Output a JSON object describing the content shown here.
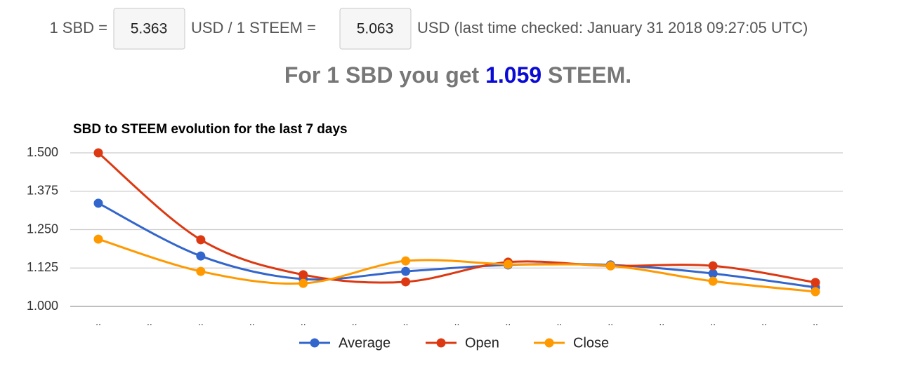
{
  "header": {
    "sbd_prefix": "1 SBD =",
    "sbd_price": "5.363",
    "steem_prefix": "USD / 1 STEEM =",
    "steem_price": "5.063",
    "checked": "USD (last time checked: January 31 2018 09:27:05 UTC)"
  },
  "result": {
    "before": "For 1 SBD you get",
    "amount": "1.059",
    "after": "STEEM."
  },
  "chart_data": {
    "type": "line",
    "title": "SBD to STEEM evolution for the last 7 days",
    "x": [
      0,
      2,
      4,
      6,
      8,
      10,
      12,
      14
    ],
    "xlim": [
      0,
      14
    ],
    "xticks": [
      {
        "value": 0,
        "label": ".."
      },
      {
        "value": 1,
        "label": ".."
      },
      {
        "value": 2,
        "label": ".."
      },
      {
        "value": 3,
        "label": ".."
      },
      {
        "value": 4,
        "label": ".."
      },
      {
        "value": 5,
        "label": ".."
      },
      {
        "value": 6,
        "label": ".."
      },
      {
        "value": 7,
        "label": ".."
      },
      {
        "value": 8,
        "label": ".."
      },
      {
        "value": 9,
        "label": ".."
      },
      {
        "value": 10,
        "label": ".."
      },
      {
        "value": 11,
        "label": ".."
      },
      {
        "value": 12,
        "label": ".."
      },
      {
        "value": 13,
        "label": ".."
      },
      {
        "value": 14,
        "label": ".."
      }
    ],
    "ylim": [
      1,
      1.5
    ],
    "yticks": [
      {
        "value": 1,
        "label": "1.000"
      },
      {
        "value": 1.125,
        "label": "1.125"
      },
      {
        "value": 1.25,
        "label": "1.250"
      },
      {
        "value": 1.375,
        "label": "1.375"
      },
      {
        "value": 1.5,
        "label": "1.500"
      }
    ],
    "grid": true,
    "smooth": true,
    "legend": "bottom",
    "series": [
      {
        "name": "Average",
        "color": "#3366cc",
        "values": [
          1.336,
          1.164,
          1.089,
          1.114,
          1.135,
          1.135,
          1.107,
          1.062
        ]
      },
      {
        "name": "Open",
        "color": "#dc3912",
        "values": [
          1.5,
          1.217,
          1.103,
          1.08,
          1.144,
          1.132,
          1.132,
          1.078
        ]
      },
      {
        "name": "Close",
        "color": "#ff9900",
        "values": [
          1.219,
          1.114,
          1.075,
          1.148,
          1.137,
          1.132,
          1.082,
          1.048
        ]
      }
    ]
  }
}
